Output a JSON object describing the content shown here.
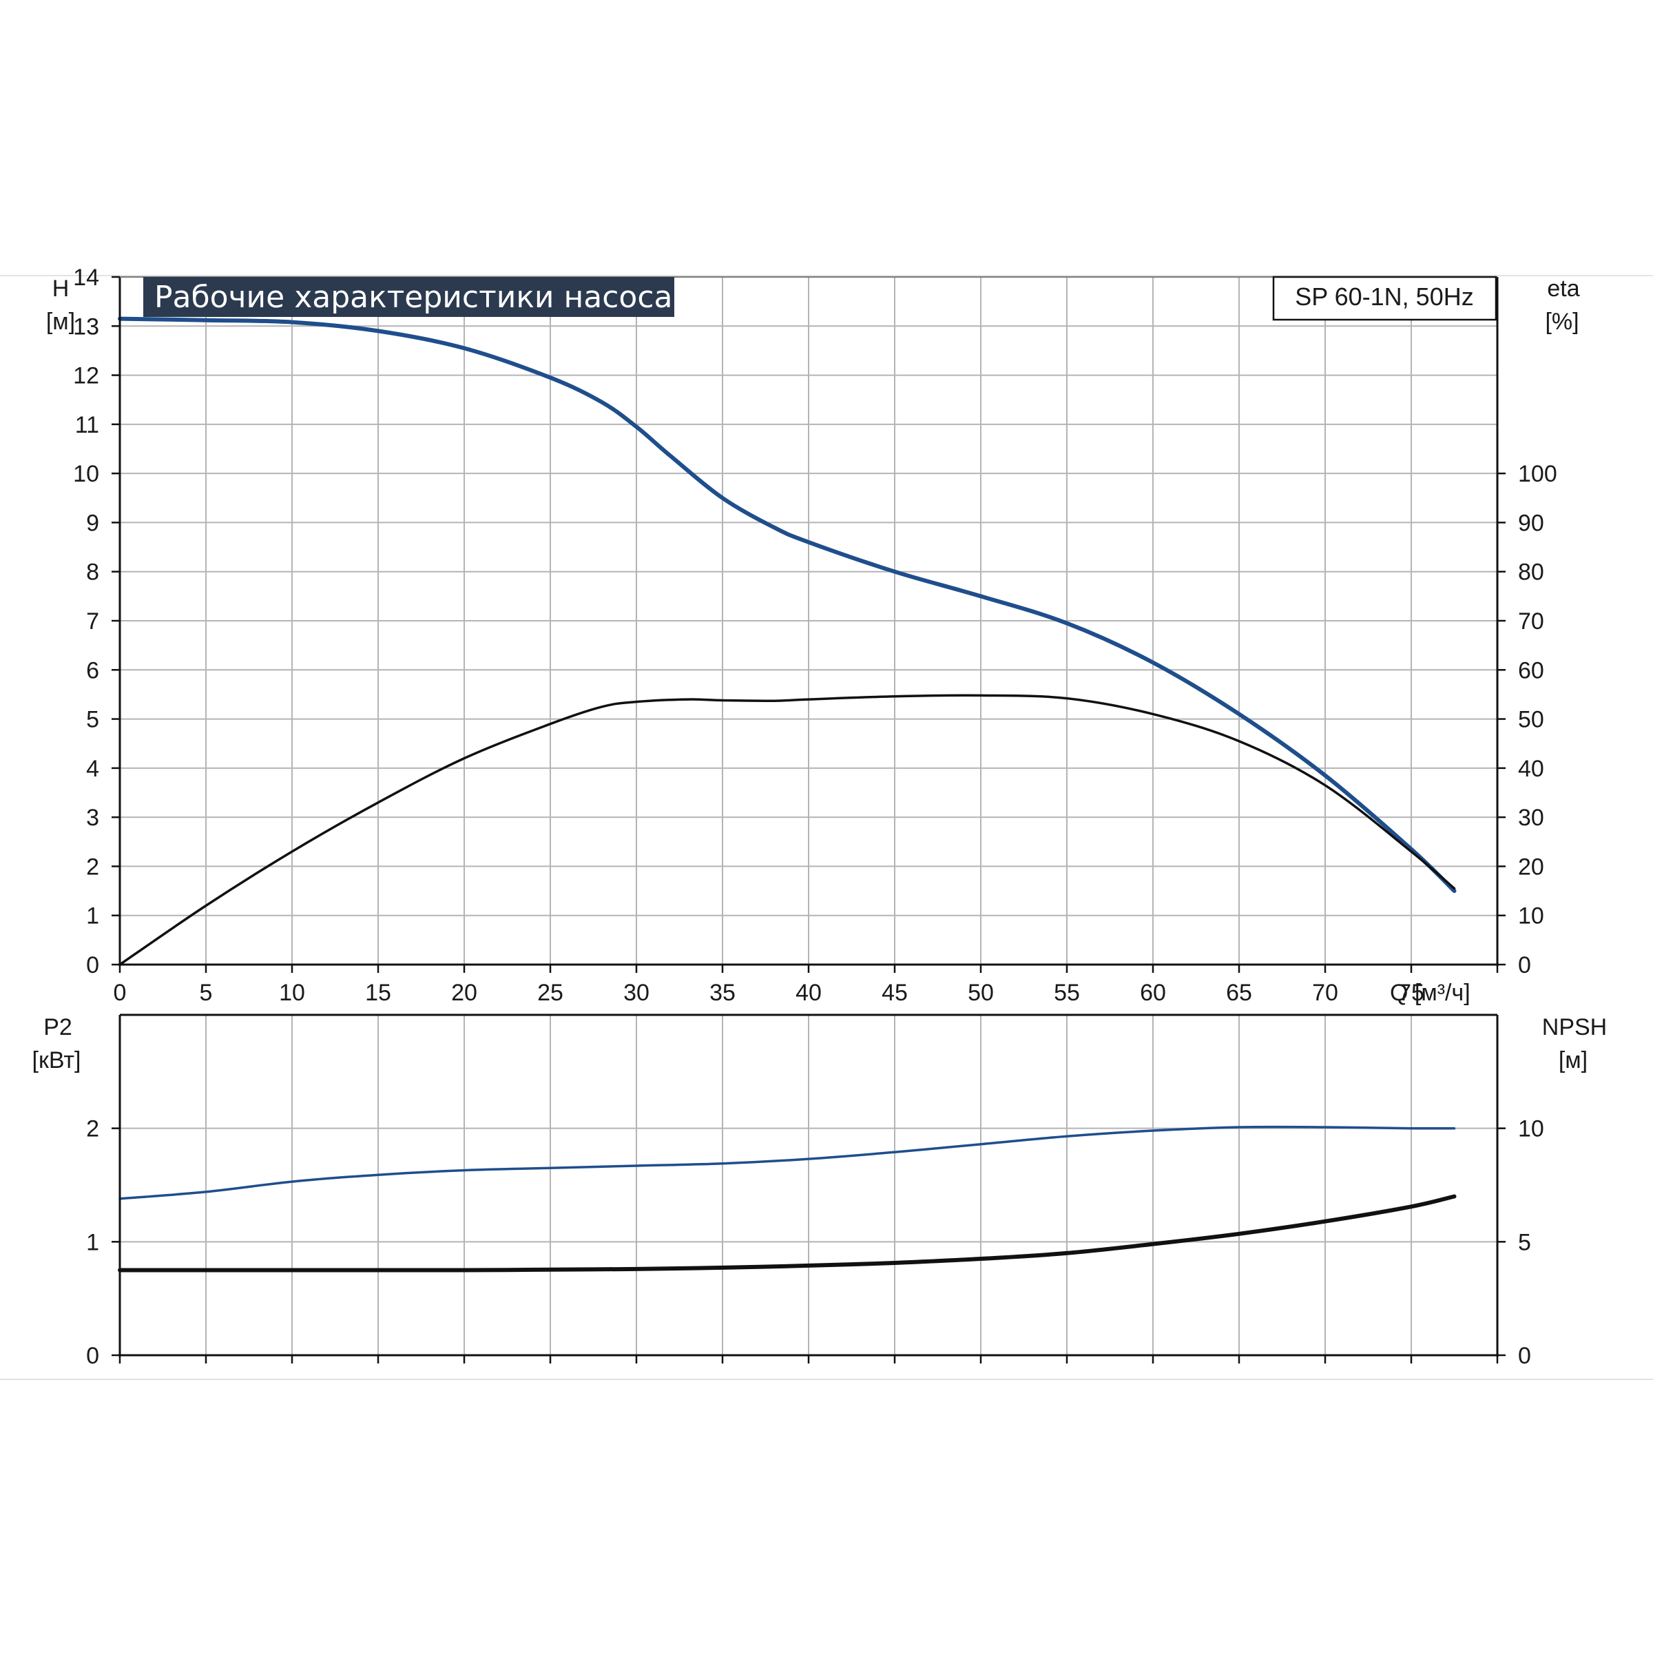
{
  "chart_data": [
    {
      "type": "line",
      "title": "Рабочие характеристики насоса",
      "model": "SP 60-1N, 50Hz",
      "xlabel": "Q [м³/ч]",
      "xlim": [
        0,
        80
      ],
      "x_ticks": [
        0,
        5,
        10,
        15,
        20,
        25,
        30,
        35,
        40,
        45,
        50,
        55,
        60,
        65,
        70,
        75
      ],
      "ylabel_left": {
        "line1": "H",
        "line2": "[м]"
      },
      "ylim_left": [
        0,
        14
      ],
      "y_ticks_left": [
        0,
        1,
        2,
        3,
        4,
        5,
        6,
        7,
        8,
        9,
        10,
        11,
        12,
        13,
        14
      ],
      "ylabel_right": {
        "line1": "eta",
        "line2": "[%]"
      },
      "ylim_right": [
        0,
        140
      ],
      "y_ticks_right": [
        0,
        10,
        20,
        30,
        40,
        50,
        60,
        70,
        80,
        90,
        100
      ],
      "grid": true,
      "series": [
        {
          "color": "#1f4e8c",
          "axis": "left",
          "x": [
            0,
            5,
            10,
            15,
            20,
            25,
            28,
            30,
            32,
            35,
            38,
            40,
            45,
            50,
            55,
            60,
            65,
            70,
            75,
            77.5
          ],
          "y": [
            13.15,
            13.12,
            13.08,
            12.9,
            12.55,
            11.95,
            11.45,
            10.95,
            10.35,
            9.5,
            8.9,
            8.6,
            8.0,
            7.5,
            6.95,
            6.15,
            5.1,
            3.85,
            2.35,
            1.5
          ]
        },
        {
          "color": "#111111",
          "axis": "right",
          "x": [
            0,
            5,
            10,
            15,
            20,
            25,
            28,
            30,
            33,
            35,
            38,
            40,
            45,
            50,
            55,
            60,
            65,
            70,
            75,
            77.5
          ],
          "y": [
            0,
            12,
            23,
            33,
            42,
            49,
            52.5,
            53.5,
            54,
            53.8,
            53.7,
            54,
            54.6,
            54.8,
            54.2,
            51,
            45.5,
            36.5,
            23,
            15.5
          ]
        }
      ]
    },
    {
      "type": "line",
      "xlim": [
        0,
        80
      ],
      "ylabel_left": {
        "line1": "P2",
        "line2": "[кВт]"
      },
      "ylim_left": [
        0,
        3
      ],
      "y_ticks_left": [
        0,
        1,
        2
      ],
      "ylabel_right": {
        "line1": "NPSH",
        "line2": "[м]"
      },
      "ylim_right": [
        0,
        15
      ],
      "y_ticks_right": [
        0,
        5,
        10
      ],
      "grid": true,
      "series": [
        {
          "color": "#1f4e8c",
          "axis": "left",
          "x": [
            0,
            5,
            10,
            15,
            20,
            25,
            30,
            35,
            40,
            45,
            50,
            55,
            60,
            65,
            70,
            75,
            77.5
          ],
          "y": [
            1.38,
            1.44,
            1.53,
            1.59,
            1.63,
            1.65,
            1.67,
            1.69,
            1.73,
            1.79,
            1.86,
            1.93,
            1.98,
            2.01,
            2.01,
            2.0,
            2.0
          ]
        },
        {
          "color": "#111111",
          "axis": "right",
          "x": [
            0,
            5,
            10,
            15,
            20,
            25,
            30,
            35,
            40,
            45,
            50,
            55,
            60,
            65,
            70,
            75,
            77.5
          ],
          "y": [
            3.75,
            3.75,
            3.75,
            3.75,
            3.75,
            3.77,
            3.8,
            3.86,
            3.95,
            4.07,
            4.25,
            4.5,
            4.9,
            5.35,
            5.9,
            6.55,
            7.0
          ]
        }
      ]
    }
  ]
}
